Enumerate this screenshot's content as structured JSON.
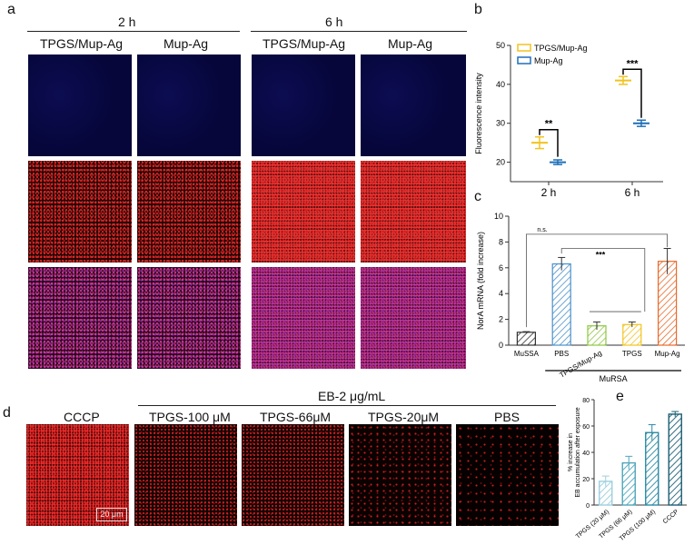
{
  "panel_letters": {
    "a": "a",
    "b": "b",
    "c": "c",
    "d": "d",
    "e": "e"
  },
  "panel_a": {
    "time_groups": [
      "2 h",
      "6 h"
    ],
    "column_labels": [
      "TPGS/Mup-Ag",
      "Mup-Ag",
      "TPGS/Mup-Ag",
      "Mup-Ag"
    ]
  },
  "panel_d": {
    "group_label": "EB-2 μg/mL",
    "column_labels": [
      "CCCP",
      "TPGS-100 μM",
      "TPGS-66μM",
      "TPGS-20μM",
      "PBS"
    ],
    "scale_bar": "20 μm"
  },
  "colors": {
    "tpgs_mup_ag": "#F2C31E",
    "mup_ag": "#1F6FB8",
    "mussa": "#333333",
    "pbs": "#4A90C8",
    "tpgs_mup_ag_bar": "#8DC63F",
    "tpgs_bar": "#F2C31E",
    "mup_ag_bar": "#E8692A",
    "e_bar": "#1C6F86"
  },
  "chart_data": [
    {
      "panel": "b",
      "type": "scatter",
      "ylabel": "Fluorescence intensity",
      "ylim": [
        15,
        50
      ],
      "yticks": [
        20,
        30,
        40,
        50
      ],
      "categories": [
        "2 h",
        "6 h"
      ],
      "series": [
        {
          "name": "TPGS/Mup-Ag",
          "values": [
            25,
            41
          ],
          "errors": [
            1.5,
            1
          ]
        },
        {
          "name": "Mup-Ag",
          "values": [
            20,
            30
          ],
          "errors": [
            0.6,
            0.8
          ]
        }
      ],
      "legend": "top-left",
      "significance": [
        "**",
        "***"
      ]
    },
    {
      "panel": "c",
      "type": "bar",
      "ylabel": "NorA mRNA (fold increase)",
      "ylim": [
        0,
        10
      ],
      "yticks": [
        0,
        2,
        4,
        6,
        8,
        10
      ],
      "categories": [
        "MuSSA",
        "PBS",
        "TPGS/Mup-Ag",
        "TPGS",
        "Mup-Ag"
      ],
      "values": [
        1.0,
        6.3,
        1.5,
        1.6,
        6.5
      ],
      "errors": [
        0.05,
        0.5,
        0.3,
        0.2,
        1.0
      ],
      "group_label": "MuRSA",
      "significance": [
        "n.s.",
        "***"
      ]
    },
    {
      "panel": "e",
      "type": "bar",
      "ylabel": "% increase in EB accumulation after exposure",
      "ylim": [
        0,
        80
      ],
      "yticks": [
        0,
        20,
        40,
        60,
        80
      ],
      "categories": [
        "TPGS (20 μM)",
        "TPGS (66 μM)",
        "TPGS (100 μM)",
        "CCCP"
      ],
      "values": [
        18,
        32,
        55,
        69
      ],
      "errors": [
        4,
        5,
        6,
        2
      ]
    }
  ]
}
